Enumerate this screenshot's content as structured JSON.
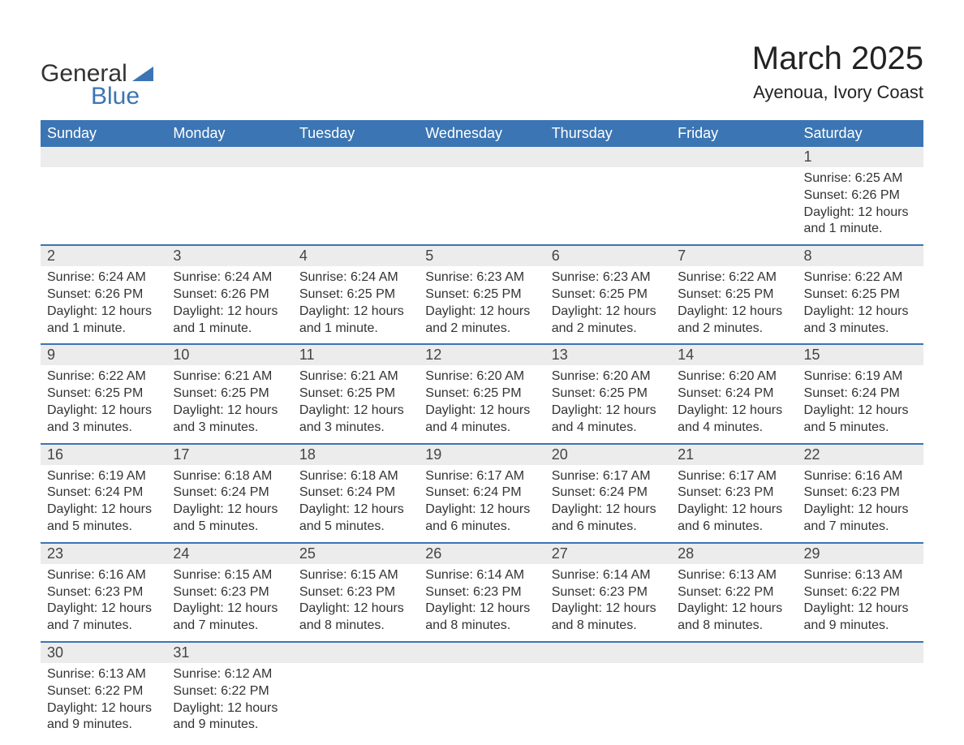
{
  "logo": {
    "word1": "General",
    "word2": "Blue"
  },
  "title": "March 2025",
  "location": "Ayenoua, Ivory Coast",
  "colors": {
    "header_bg": "#3b75b3",
    "header_text": "#ffffff",
    "daynum_bg": "#ececec",
    "text": "#333333",
    "page_bg": "#ffffff",
    "separator": "#3b75b3"
  },
  "typography": {
    "title_fontsize": 40,
    "location_fontsize": 22,
    "dow_fontsize": 18,
    "daynum_fontsize": 18,
    "detail_fontsize": 16,
    "font_family": "Arial"
  },
  "days_of_week": [
    "Sunday",
    "Monday",
    "Tuesday",
    "Wednesday",
    "Thursday",
    "Friday",
    "Saturday"
  ],
  "weeks": [
    [
      null,
      null,
      null,
      null,
      null,
      null,
      {
        "n": "1",
        "sr": "Sunrise: 6:25 AM",
        "ss": "Sunset: 6:26 PM",
        "dl": "Daylight: 12 hours and 1 minute."
      }
    ],
    [
      {
        "n": "2",
        "sr": "Sunrise: 6:24 AM",
        "ss": "Sunset: 6:26 PM",
        "dl": "Daylight: 12 hours and 1 minute."
      },
      {
        "n": "3",
        "sr": "Sunrise: 6:24 AM",
        "ss": "Sunset: 6:26 PM",
        "dl": "Daylight: 12 hours and 1 minute."
      },
      {
        "n": "4",
        "sr": "Sunrise: 6:24 AM",
        "ss": "Sunset: 6:25 PM",
        "dl": "Daylight: 12 hours and 1 minute."
      },
      {
        "n": "5",
        "sr": "Sunrise: 6:23 AM",
        "ss": "Sunset: 6:25 PM",
        "dl": "Daylight: 12 hours and 2 minutes."
      },
      {
        "n": "6",
        "sr": "Sunrise: 6:23 AM",
        "ss": "Sunset: 6:25 PM",
        "dl": "Daylight: 12 hours and 2 minutes."
      },
      {
        "n": "7",
        "sr": "Sunrise: 6:22 AM",
        "ss": "Sunset: 6:25 PM",
        "dl": "Daylight: 12 hours and 2 minutes."
      },
      {
        "n": "8",
        "sr": "Sunrise: 6:22 AM",
        "ss": "Sunset: 6:25 PM",
        "dl": "Daylight: 12 hours and 3 minutes."
      }
    ],
    [
      {
        "n": "9",
        "sr": "Sunrise: 6:22 AM",
        "ss": "Sunset: 6:25 PM",
        "dl": "Daylight: 12 hours and 3 minutes."
      },
      {
        "n": "10",
        "sr": "Sunrise: 6:21 AM",
        "ss": "Sunset: 6:25 PM",
        "dl": "Daylight: 12 hours and 3 minutes."
      },
      {
        "n": "11",
        "sr": "Sunrise: 6:21 AM",
        "ss": "Sunset: 6:25 PM",
        "dl": "Daylight: 12 hours and 3 minutes."
      },
      {
        "n": "12",
        "sr": "Sunrise: 6:20 AM",
        "ss": "Sunset: 6:25 PM",
        "dl": "Daylight: 12 hours and 4 minutes."
      },
      {
        "n": "13",
        "sr": "Sunrise: 6:20 AM",
        "ss": "Sunset: 6:25 PM",
        "dl": "Daylight: 12 hours and 4 minutes."
      },
      {
        "n": "14",
        "sr": "Sunrise: 6:20 AM",
        "ss": "Sunset: 6:24 PM",
        "dl": "Daylight: 12 hours and 4 minutes."
      },
      {
        "n": "15",
        "sr": "Sunrise: 6:19 AM",
        "ss": "Sunset: 6:24 PM",
        "dl": "Daylight: 12 hours and 5 minutes."
      }
    ],
    [
      {
        "n": "16",
        "sr": "Sunrise: 6:19 AM",
        "ss": "Sunset: 6:24 PM",
        "dl": "Daylight: 12 hours and 5 minutes."
      },
      {
        "n": "17",
        "sr": "Sunrise: 6:18 AM",
        "ss": "Sunset: 6:24 PM",
        "dl": "Daylight: 12 hours and 5 minutes."
      },
      {
        "n": "18",
        "sr": "Sunrise: 6:18 AM",
        "ss": "Sunset: 6:24 PM",
        "dl": "Daylight: 12 hours and 5 minutes."
      },
      {
        "n": "19",
        "sr": "Sunrise: 6:17 AM",
        "ss": "Sunset: 6:24 PM",
        "dl": "Daylight: 12 hours and 6 minutes."
      },
      {
        "n": "20",
        "sr": "Sunrise: 6:17 AM",
        "ss": "Sunset: 6:24 PM",
        "dl": "Daylight: 12 hours and 6 minutes."
      },
      {
        "n": "21",
        "sr": "Sunrise: 6:17 AM",
        "ss": "Sunset: 6:23 PM",
        "dl": "Daylight: 12 hours and 6 minutes."
      },
      {
        "n": "22",
        "sr": "Sunrise: 6:16 AM",
        "ss": "Sunset: 6:23 PM",
        "dl": "Daylight: 12 hours and 7 minutes."
      }
    ],
    [
      {
        "n": "23",
        "sr": "Sunrise: 6:16 AM",
        "ss": "Sunset: 6:23 PM",
        "dl": "Daylight: 12 hours and 7 minutes."
      },
      {
        "n": "24",
        "sr": "Sunrise: 6:15 AM",
        "ss": "Sunset: 6:23 PM",
        "dl": "Daylight: 12 hours and 7 minutes."
      },
      {
        "n": "25",
        "sr": "Sunrise: 6:15 AM",
        "ss": "Sunset: 6:23 PM",
        "dl": "Daylight: 12 hours and 8 minutes."
      },
      {
        "n": "26",
        "sr": "Sunrise: 6:14 AM",
        "ss": "Sunset: 6:23 PM",
        "dl": "Daylight: 12 hours and 8 minutes."
      },
      {
        "n": "27",
        "sr": "Sunrise: 6:14 AM",
        "ss": "Sunset: 6:23 PM",
        "dl": "Daylight: 12 hours and 8 minutes."
      },
      {
        "n": "28",
        "sr": "Sunrise: 6:13 AM",
        "ss": "Sunset: 6:22 PM",
        "dl": "Daylight: 12 hours and 8 minutes."
      },
      {
        "n": "29",
        "sr": "Sunrise: 6:13 AM",
        "ss": "Sunset: 6:22 PM",
        "dl": "Daylight: 12 hours and 9 minutes."
      }
    ],
    [
      {
        "n": "30",
        "sr": "Sunrise: 6:13 AM",
        "ss": "Sunset: 6:22 PM",
        "dl": "Daylight: 12 hours and 9 minutes."
      },
      {
        "n": "31",
        "sr": "Sunrise: 6:12 AM",
        "ss": "Sunset: 6:22 PM",
        "dl": "Daylight: 12 hours and 9 minutes."
      },
      null,
      null,
      null,
      null,
      null
    ]
  ]
}
